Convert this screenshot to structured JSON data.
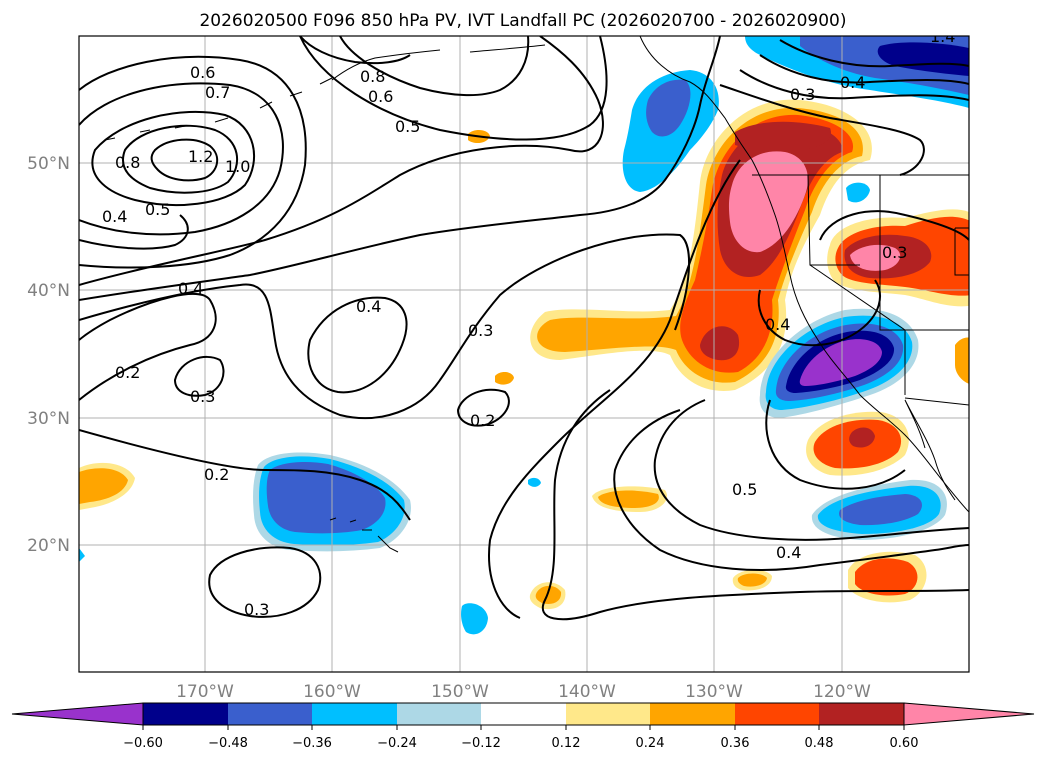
{
  "title": "2026020500 F096 850 hPa PV, IVT Landfall PC (2026020700 - 2026020900)",
  "colors": {
    "neg_060": "#9932cc",
    "neg_048": "#00008b",
    "neg_036": "#3a5fcd",
    "neg_024": "#00bfff",
    "neg_012": "#add8e6",
    "neutral": "#ffffff",
    "pos_012": "#ffe88a",
    "pos_024": "#ffa500",
    "pos_036": "#ff4500",
    "pos_048": "#b22222",
    "pos_060": "#ff85a8"
  },
  "chart_data": {
    "type": "map",
    "map_extent": {
      "lon_min": -180,
      "lon_max": -110,
      "lat_min": 10,
      "lat_max": 60
    },
    "lon_ticks": [
      "170°W",
      "160°W",
      "150°W",
      "140°W",
      "130°W",
      "120°W"
    ],
    "lat_ticks": [
      "50°N",
      "40°N",
      "30°N",
      "20°N"
    ],
    "grid": true,
    "colorbar": {
      "levels": [
        "−0.60",
        "−0.48",
        "−0.36",
        "−0.24",
        "−0.12",
        "0.12",
        "0.24",
        "0.36",
        "0.48",
        "0.60"
      ],
      "extend": "both",
      "orientation": "horizontal"
    },
    "contour_labels": [
      "0.6",
      "0.7",
      "0.8",
      "1.2",
      "1.0",
      "0.5",
      "0.4",
      "0.4",
      "0.8",
      "0.6",
      "0.5",
      "0.4",
      "0.3",
      "0.2",
      "0.3",
      "0.2",
      "0.2",
      "0.3",
      "0.5",
      "0.4",
      "0.4",
      "0.3",
      "0.3",
      "0.4",
      "1.4"
    ]
  }
}
